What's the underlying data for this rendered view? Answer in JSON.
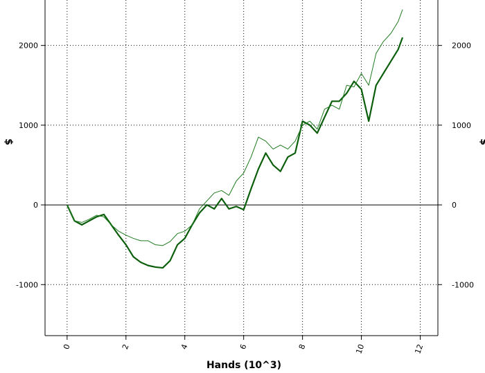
{
  "chart_data": {
    "type": "line",
    "xlabel": "Hands (10^3)",
    "ylabel": "$",
    "x": [
      0,
      0.25,
      0.5,
      0.75,
      1,
      1.25,
      1.5,
      1.75,
      2,
      2.25,
      2.5,
      2.75,
      3,
      3.25,
      3.5,
      3.75,
      4,
      4.25,
      4.5,
      4.75,
      5,
      5.25,
      5.5,
      5.75,
      6,
      6.25,
      6.5,
      6.75,
      7,
      7.25,
      7.5,
      7.75,
      8,
      8.25,
      8.5,
      8.75,
      9,
      9.25,
      9.5,
      9.75,
      10,
      10.25,
      10.5,
      10.75,
      11,
      11.25,
      11.4
    ],
    "series": [
      {
        "color": "#0b5e0b",
        "width": 2.2,
        "values": [
          0,
          -200,
          -250,
          -200,
          -150,
          -120,
          -250,
          -380,
          -500,
          -650,
          -720,
          -760,
          -780,
          -790,
          -700,
          -500,
          -420,
          -250,
          -100,
          0,
          -50,
          80,
          -50,
          -20,
          -60,
          200,
          450,
          650,
          500,
          420,
          600,
          650,
          1050,
          1000,
          900,
          1100,
          1300,
          1300,
          1400,
          1550,
          1450,
          1050,
          1500,
          1650,
          1800,
          1950,
          2100
        ]
      },
      {
        "color": "#1f7a1f",
        "width": 1,
        "values": [
          0,
          -200,
          -220,
          -180,
          -130,
          -150,
          -250,
          -330,
          -380,
          -420,
          -450,
          -450,
          -500,
          -510,
          -460,
          -360,
          -330,
          -250,
          -50,
          50,
          150,
          180,
          120,
          300,
          400,
          600,
          850,
          800,
          700,
          750,
          700,
          800,
          1000,
          1050,
          950,
          1200,
          1250,
          1200,
          1500,
          1480,
          1650,
          1500,
          1900,
          2050,
          2150,
          2300,
          2450
        ]
      }
    ],
    "xlim": [
      -0.75,
      12.6
    ],
    "xticks": [
      0,
      2,
      4,
      6,
      8,
      10,
      12
    ],
    "ylim": [
      -1640,
      2570
    ],
    "yticks": [
      -1000,
      0,
      1000,
      2000
    ],
    "grid": true
  }
}
